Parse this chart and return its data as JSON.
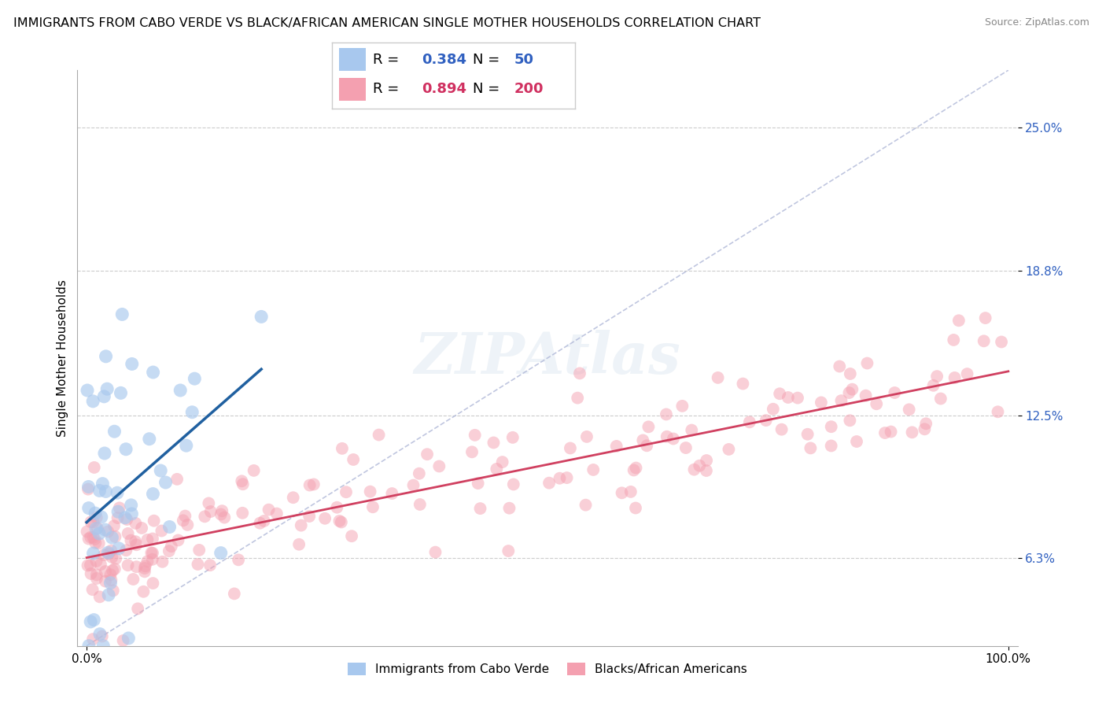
{
  "title": "IMMIGRANTS FROM CABO VERDE VS BLACK/AFRICAN AMERICAN SINGLE MOTHER HOUSEHOLDS CORRELATION CHART",
  "source": "Source: ZipAtlas.com",
  "ylabel": "Single Mother Households",
  "legend_blue_R": "0.384",
  "legend_blue_N": "50",
  "legend_pink_R": "0.894",
  "legend_pink_N": "200",
  "blue_color": "#a8c8ee",
  "pink_color": "#f4a0b0",
  "blue_line_color": "#2060a0",
  "pink_line_color": "#d04060",
  "diag_color": "#b0b8d8",
  "x_ticks": [
    0,
    100
  ],
  "x_tick_labels": [
    "0.0%",
    "100.0%"
  ],
  "y_ticks": [
    0.063,
    0.125,
    0.188,
    0.25
  ],
  "y_tick_labels": [
    "6.3%",
    "12.5%",
    "18.8%",
    "25.0%"
  ],
  "ylim": [
    0.025,
    0.275
  ],
  "xlim": [
    -1,
    101
  ],
  "title_fontsize": 11.5,
  "axis_label_fontsize": 11,
  "tick_fontsize": 11,
  "legend_fontsize": 13,
  "legend_R_color_blue": "#3060c0",
  "legend_N_color_blue": "#3060c0",
  "legend_R_color_pink": "#d03060",
  "legend_N_color_pink": "#d03060"
}
